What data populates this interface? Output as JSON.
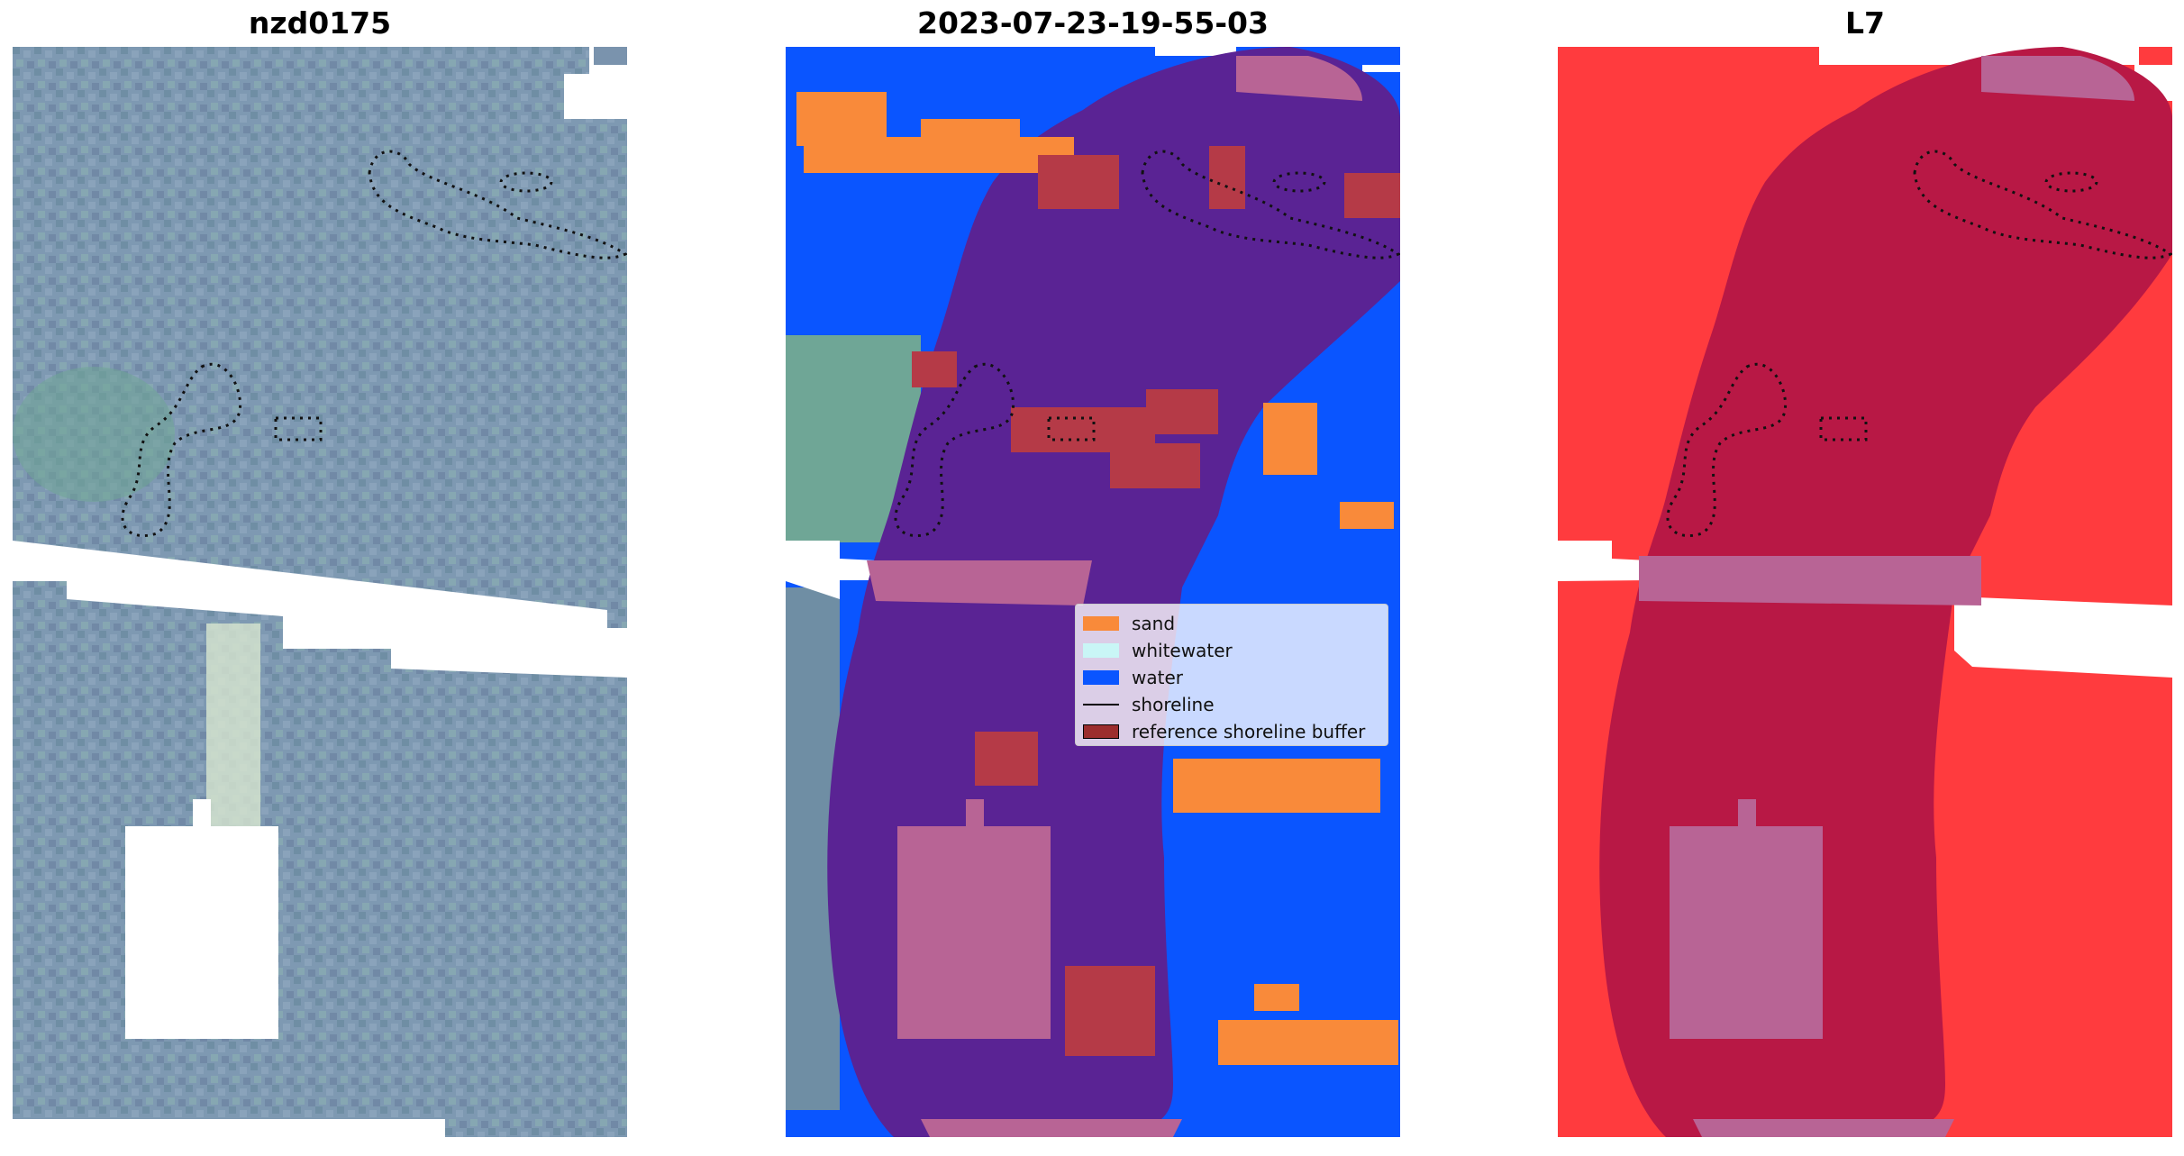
{
  "panels": {
    "left_title": "nzd0175",
    "middle_title": "2023-07-23-19-55-03",
    "right_title": "L7"
  },
  "legend": {
    "items": [
      {
        "label": "sand",
        "color": "#f98a3a"
      },
      {
        "label": "whitewater",
        "color": "#c9f6f6"
      },
      {
        "label": "water",
        "color": "#0a55ff"
      },
      {
        "label": "shoreline",
        "color": "#000000"
      },
      {
        "label": "reference shoreline buffer",
        "color": "#9b2d2d"
      }
    ]
  },
  "colors": {
    "imagery": "#7f9ab3",
    "sand": "#f98a3a",
    "whitewater": "#c9f6f6",
    "water": "#0a55ff",
    "buffer_overlay": "#5a2394",
    "cloud_mask": "#b86495",
    "l7_background": "#ff3b3e",
    "l7_buffer": "#b81845"
  }
}
